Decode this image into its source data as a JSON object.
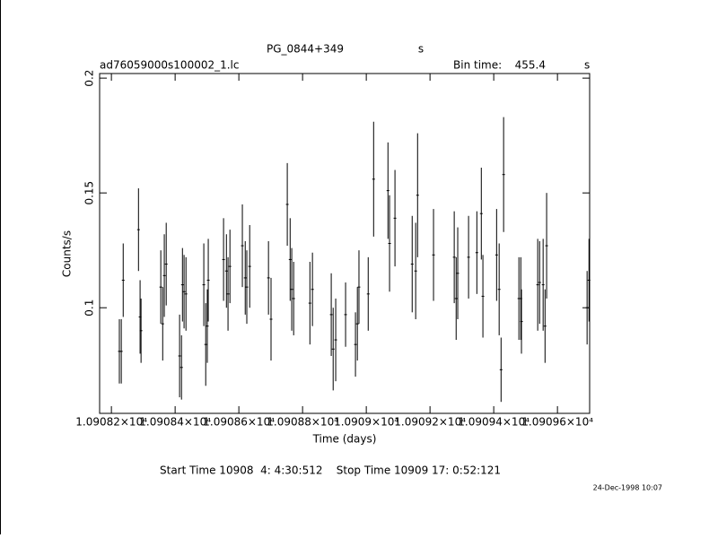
{
  "chart_data": {
    "type": "errorbar",
    "title": "PG_0844+349",
    "title_unit": "s",
    "file_name": "ad76059000s100002_1.lc",
    "bin_time_label": "Bin time:",
    "bin_time": 455.4,
    "bin_time_unit": "s",
    "x_label": "Time (days)",
    "y_label": "Counts/s",
    "time_range": "Start Time 10908  4: 4:30:512    Stop Time 10909 17: 0:52:121",
    "date_stamp": "24-Dec-1998 10:07",
    "color": "#000000",
    "xlim": [
      10908.163,
      10909.701
    ],
    "ylim": [
      0.054,
      0.202
    ],
    "xticks": [
      {
        "value": 10908.2,
        "label": "1.09082×10⁴"
      },
      {
        "value": 10908.4,
        "label": "1.09084×10⁴"
      },
      {
        "value": 10908.6,
        "label": "1.09086×10⁴"
      },
      {
        "value": 10908.8,
        "label": "1.09088×10⁴"
      },
      {
        "value": 10909.0,
        "label": "1.0909×10⁴"
      },
      {
        "value": 10909.2,
        "label": "1.09092×10⁴"
      },
      {
        "value": 10909.4,
        "label": "1.09094×10⁴"
      },
      {
        "value": 10909.6,
        "label": "1.09096×10⁴"
      }
    ],
    "yticks": [
      0.1,
      0.15,
      0.2
    ],
    "x": [
      10908.225,
      10908.231,
      10908.237,
      10908.285,
      10908.29,
      10908.293,
      10908.355,
      10908.361,
      10908.366,
      10908.372,
      10908.414,
      10908.42,
      10908.423,
      10908.428,
      10908.434,
      10908.49,
      10908.496,
      10908.501,
      10908.504,
      10908.552,
      10908.561,
      10908.566,
      10908.572,
      10908.611,
      10908.62,
      10908.625,
      10908.634,
      10908.693,
      10908.701,
      10908.752,
      10908.761,
      10908.766,
      10908.772,
      10908.823,
      10908.831,
      10908.89,
      10908.896,
      10908.904,
      10908.935,
      10908.966,
      10908.972,
      10908.977,
      10909.006,
      10909.023,
      10909.068,
      10909.073,
      10909.09,
      10909.144,
      10909.155,
      10909.161,
      10909.211,
      10909.276,
      10909.282,
      10909.287,
      10909.321,
      10909.347,
      10909.361,
      10909.366,
      10909.409,
      10909.417,
      10909.423,
      10909.431,
      10909.479,
      10909.485,
      10909.487,
      10909.538,
      10909.544,
      10909.555,
      10909.561,
      10909.566,
      10909.693,
      10909.699
    ],
    "values": [
      0.081,
      0.081,
      0.112,
      0.134,
      0.096,
      0.09,
      0.109,
      0.093,
      0.114,
      0.119,
      0.079,
      0.074,
      0.11,
      0.107,
      0.106,
      0.11,
      0.084,
      0.092,
      0.112,
      0.121,
      0.116,
      0.106,
      0.118,
      0.127,
      0.113,
      0.109,
      0.118,
      0.113,
      0.095,
      0.145,
      0.121,
      0.108,
      0.104,
      0.102,
      0.108,
      0.097,
      0.082,
      0.086,
      0.097,
      0.084,
      0.093,
      0.109,
      0.106,
      0.156,
      0.151,
      0.128,
      0.139,
      0.119,
      0.116,
      0.149,
      0.123,
      0.122,
      0.104,
      0.115,
      0.122,
      0.124,
      0.141,
      0.105,
      0.123,
      0.108,
      0.073,
      0.158,
      0.104,
      0.104,
      0.094,
      0.11,
      0.111,
      0.11,
      0.092,
      0.127,
      0.1,
      0.112
    ],
    "errors": [
      0.014,
      0.014,
      0.016,
      0.018,
      0.016,
      0.014,
      0.016,
      0.016,
      0.018,
      0.018,
      0.018,
      0.014,
      0.016,
      0.016,
      0.016,
      0.018,
      0.018,
      0.016,
      0.018,
      0.018,
      0.016,
      0.016,
      0.016,
      0.018,
      0.016,
      0.016,
      0.018,
      0.016,
      0.018,
      0.018,
      0.018,
      0.018,
      0.016,
      0.018,
      0.016,
      0.018,
      0.018,
      0.018,
      0.014,
      0.014,
      0.016,
      0.016,
      0.016,
      0.025,
      0.021,
      0.021,
      0.021,
      0.021,
      0.021,
      0.027,
      0.02,
      0.02,
      0.018,
      0.02,
      0.018,
      0.018,
      0.02,
      0.018,
      0.02,
      0.02,
      0.014,
      0.025,
      0.018,
      0.018,
      0.014,
      0.02,
      0.018,
      0.02,
      0.016,
      0.023,
      0.016,
      0.018
    ]
  }
}
